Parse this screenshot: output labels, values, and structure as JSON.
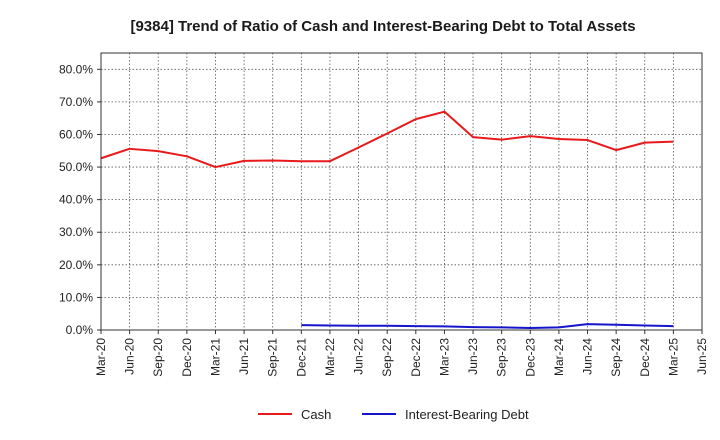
{
  "chart_data": {
    "type": "line",
    "title": "[9384]  Trend of Ratio of Cash and Interest-Bearing Debt to Total Assets",
    "xlabel": "",
    "ylabel": "",
    "x_ticks": [
      "Mar-20",
      "Jun-20",
      "Sep-20",
      "Dec-20",
      "Mar-21",
      "Jun-21",
      "Sep-21",
      "Dec-21",
      "Mar-22",
      "Jun-22",
      "Sep-22",
      "Dec-22",
      "Mar-23",
      "Jun-23",
      "Sep-23",
      "Dec-23",
      "Mar-24",
      "Jun-24",
      "Sep-24",
      "Dec-24",
      "Mar-25",
      "Jun-25"
    ],
    "y_ticks": [
      "0.0%",
      "10.0%",
      "20.0%",
      "30.0%",
      "40.0%",
      "50.0%",
      "60.0%",
      "70.0%",
      "80.0%"
    ],
    "ylim": [
      0,
      85
    ],
    "grid": true,
    "legend_position": "bottom-center",
    "series": [
      {
        "name": "Cash",
        "color": "#e8191b",
        "values": [
          52.7,
          55.6,
          54.9,
          53.3,
          50.0,
          51.9,
          52.0,
          51.8,
          51.8,
          56.0,
          60.3,
          64.7,
          67.0,
          59.2,
          58.4,
          59.5,
          58.6,
          58.3,
          55.2,
          57.5,
          57.8,
          null
        ]
      },
      {
        "name": "Interest-Bearing Debt",
        "color": "#1515cc",
        "values": [
          null,
          null,
          null,
          null,
          null,
          null,
          null,
          1.5,
          1.4,
          1.3,
          1.3,
          1.2,
          1.1,
          0.9,
          0.8,
          0.6,
          0.8,
          1.8,
          1.6,
          1.4,
          1.2,
          null
        ]
      }
    ]
  }
}
